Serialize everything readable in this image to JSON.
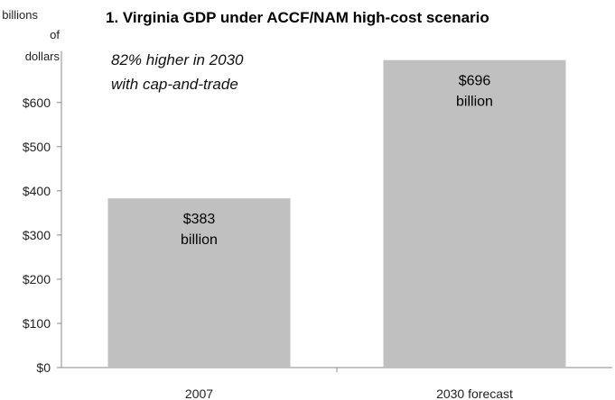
{
  "chart_data": {
    "type": "bar",
    "title": "1. Virginia GDP under ACCF/NAM high-cost scenario",
    "ylabel_lines": [
      "billions",
      "of",
      "dollars"
    ],
    "categories": [
      "2007",
      "2030 forecast"
    ],
    "values": [
      383,
      696
    ],
    "ylim": [
      0,
      700
    ],
    "yticks": [
      0,
      100,
      200,
      300,
      400,
      500,
      600
    ],
    "ytick_labels": [
      "$0",
      "$100",
      "$200",
      "$300",
      "$400",
      "$500",
      "$600"
    ],
    "data_labels": [
      {
        "value": "$383",
        "unit": "billion"
      },
      {
        "value": "$696",
        "unit": "billion"
      }
    ],
    "annotation_lines": [
      "82% higher in 2030",
      "with cap-and-trade"
    ],
    "bar_color": "#c0c0c0",
    "grid": false,
    "legend": "none"
  }
}
